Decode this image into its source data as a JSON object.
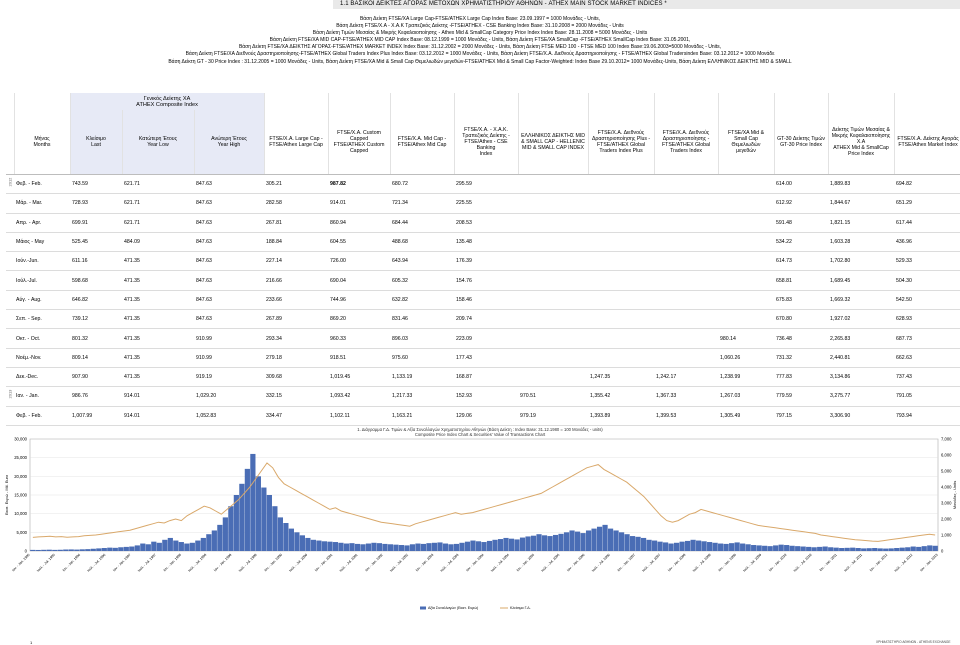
{
  "header": {
    "title": "1.1  ΒΑΣΙΚΟΙ ΔΕΙΚΤΕΣ ΑΓΟΡΑΣ ΜΕΤΟΧΩΝ  ΧΡΗΜΑΤΙΣΤΗΡΙΟΥ ΑΘΗΝΩΝ  - ATHEX MAIN STOCK MARKET INDICES *"
  },
  "notes": [
    "Βάση Δείκτη FTSE/XA Large Cap-FTSE/ATHEX Large Cap Index Base: 23.09.1997 = 1000  Μονάδες - Units,",
    "Βάση Δείκτη FTSE/X.A - X.A.K Τραπεζικός Δείκτης -FTSE/ATHEX - CSE Banking Index Base: 31.10.2008 = 2000 Μονάδες - Units",
    "Βάση Δείκτη Τιμών Μεσαίας & Μικρής Κεφαλαιοποίησης - Athex Mid & SmallCap Category Price Index Index Base: 28.11.2008 = 5000 Μονάδες - Units",
    "Βάση Δείκτη FTSE/XA MID CAP-FTSE/ATHEX MID CAP Index Base: 08.12.1999 = 1000  Μονάδες - Units, Βάση Δείκτη FTSE/XA SmallCap -FTSE/ATHEX SmallCap Index Base: 31.05.2001,",
    "Βάση Δείκτη FTSE/XA ΔΕΙΚΤΗΣ ΑΓΟΡΑΣ-FTSE/ATHEX MARKET INDEX Index Base: 31.12.2002 = 2000  Μονάδες - Units, Βάση Δείκτη FTSE MED 100 - FTSE MED 100 Index Base:19.06.2003=5000 Μονάδες - Units,",
    "Βάση Δείκτη FTSE/XA Διεθνούς Δραστηριοποίησης-FTSE/ATHEX Global Traders Index Plus Index Base: 03.12.2012 = 1000  Μονάδες - Units, Βάση Δείκτη FTSE/X.A. Διεθνούς Δραστηριοποίησης - FTSE/ATHEX Global Tradersindex Base: 03.12.2012 = 1000  Μονάδε",
    "Βάση Δείκτη GT - 30 Price Index : 31.12.2005 = 1000  Μονάδες - Units, Βάση Δείκτη FTSE/XA  Mid & Small Cap Θεμελιωδών μεγεθών-FTSE/ATHEX Mid & Small Cap Factor-Weighted: Index Base 29.10.2012= 1000 Μονάδες-Units, Βάση Δείκτη ΕΛΛΗΝΙΚΟΣ ΔΕΙΚΤΗΣ MID & SMALL"
  ],
  "table": {
    "group_header": "Γενικός Δείκτης ΧΑ\nATHEX Composite Index",
    "columns": [
      "Μήνας\nMonths",
      "Κλείσιμο\nLast",
      "Κατώτερη  Έτους\nYear  Low",
      "Ανώτερη  Έτους\nYear  High",
      "FTSE/X.A. Large Cap -\nFTSE/Athex Large Cap",
      "FTSE/X.A. Custom Capped\nFTSE/ATHEX Custom\nCapped",
      "FTSE/X.A. Mid Cap -\nFTSE/Athex Mid Cap",
      "FTSE/X.A. - X.A.K.\nΤραπεζικός Δείκτης -\nFTSE/Athex - CSE Banking\nIndex",
      "ΕΛΛΗΝΙΚΟΣ ΔΕΙΚΤΗΣ MID\n& SMALL CAP - HELLENIC\nMID & SMALL CAP INDEX",
      "FTSE/X.A. Διεθνούς\nΔραστηριοποίησης Plus -\nFTSE/ATHEX Global\nTraders Index Plus",
      "FTSE/X.A. Διεθνούς\nΔραστηριοποίησης -\nFTSE/ATHEX Global\nTraders Index",
      "FTSE/XA Mid &\nSmall Cap\nΘεμελιωδών\nμεγεθών",
      "GT-30 Δείκτης Τιμών\nGT-30 Price Index",
      "Δείκτης Τιμών Μεσαίας &\nΜικρής Κεφαλαιοποίησης\nΧ.Α\nATHEX Mid & SmallCap\nPrice Index",
      "FTSE/X.A. Δείκτης Αγοράς\nFTSE/Athex Market Index"
    ],
    "rows": [
      {
        "year": "2012",
        "month": "Φεβ. - Feb.",
        "v": [
          "743.59",
          "621.71",
          "847.63",
          "305.21",
          "987.82",
          "680.72",
          "295.59",
          "",
          "",
          "",
          "",
          "614.00",
          "1,889.83",
          "694.82"
        ]
      },
      {
        "year": "",
        "month": "Μάρ. - Mar.",
        "v": [
          "728.93",
          "621.71",
          "847.63",
          "282.58",
          "914.01",
          "721.34",
          "225.55",
          "",
          "",
          "",
          "",
          "612.92",
          "1,844.67",
          "651.29"
        ]
      },
      {
        "year": "",
        "month": "Απρ. - Apr.",
        "v": [
          "699.91",
          "621.71",
          "847.63",
          "267.81",
          "860.94",
          "684.44",
          "208.53",
          "",
          "",
          "",
          "",
          "591.48",
          "1,821.15",
          "617.44"
        ]
      },
      {
        "year": "",
        "month": "Μάιος - May",
        "v": [
          "525.45",
          "484.09",
          "847.63",
          "188.84",
          "604.55",
          "488.68",
          "135.48",
          "",
          "",
          "",
          "",
          "534.22",
          "1,603.28",
          "436.96"
        ]
      },
      {
        "year": "",
        "month": "Ιούν.-Jun.",
        "v": [
          "611.16",
          "471.35",
          "847.63",
          "227.14",
          "726.00",
          "643.94",
          "176.39",
          "",
          "",
          "",
          "",
          "614.73",
          "1,702.80",
          "529.33"
        ]
      },
      {
        "year": "",
        "month": "Ιούλ.-Jul.",
        "v": [
          "598.68",
          "471.35",
          "847.63",
          "216.66",
          "690.04",
          "605.32",
          "154.76",
          "",
          "",
          "",
          "",
          "658.81",
          "1,689.45",
          "504.30"
        ]
      },
      {
        "year": "",
        "month": "Αύγ. - Aug.",
        "v": [
          "646.82",
          "471.35",
          "847.63",
          "233.66",
          "744.96",
          "632.82",
          "158.46",
          "",
          "",
          "",
          "",
          "675.83",
          "1,669.32",
          "542.50"
        ]
      },
      {
        "year": "",
        "month": "Σεπ. - Sep.",
        "v": [
          "739.12",
          "471.35",
          "847.63",
          "267.89",
          "869.20",
          "831.46",
          "209.74",
          "",
          "",
          "",
          "",
          "670.80",
          "1,927.02",
          "628.93"
        ]
      },
      {
        "year": "",
        "month": "Οκτ. - Oct.",
        "v": [
          "801.32",
          "471.35",
          "910.99",
          "293.34",
          "960.33",
          "896.03",
          "223.09",
          "",
          "",
          "",
          "980.14",
          "736.48",
          "2,265.83",
          "687.73"
        ]
      },
      {
        "year": "",
        "month": "Νοέμ.-Nov.",
        "v": [
          "809.14",
          "471.35",
          "910.99",
          "279.18",
          "918.51",
          "975.60",
          "177.43",
          "",
          "",
          "",
          "1,060.26",
          "731.32",
          "2,440.81",
          "662.63"
        ]
      },
      {
        "year": "",
        "month": "Δεκ.-Dec.",
        "v": [
          "907.90",
          "471.35",
          "919.19",
          "309.68",
          "1,019.45",
          "1,133.19",
          "168.87",
          "",
          "1,247.35",
          "1,242.17",
          "1,238.99",
          "777.83",
          "3,134.86",
          "737.43"
        ]
      },
      {
        "year": "2013",
        "month": "Ιαν. - Jan.",
        "v": [
          "986.76",
          "914.01",
          "1,029.20",
          "332.15",
          "1,093.42",
          "1,217.33",
          "152.93",
          "970.51",
          "1,355.42",
          "1,367.33",
          "1,267.03",
          "779.59",
          "3,275.77",
          "791.05"
        ]
      },
      {
        "year": "",
        "month": "Φεβ. - Feb.",
        "v": [
          "1,007.99",
          "914.01",
          "1,052.83",
          "334.47",
          "1,102.11",
          "1,163.21",
          "129.06",
          "979.19",
          "1,393.89",
          "1,399.53",
          "1,305.49",
          "797.15",
          "3,306.90",
          "793.94"
        ]
      }
    ]
  },
  "chart_data": {
    "type": "bar",
    "title": "1.  Διάγραμμα Γ.Δ. Τιμών & Αξία Συναλλαγών Χρηματιστηρίου Αθηνών (Βάση Δείκτη : Index Base: 31.12.1980 = 100 Μονάδες - units)\nComposite Price Index Chart  & Securities' Value of Transactions Chart",
    "ylabel_left": "Εκατ. Ευρώ - Mil. Euro",
    "ylabel_right": "Μονάδες - Units",
    "yleft_ticks": [
      "0",
      "5,000",
      "10,000",
      "15,000",
      "20,000",
      "25,000",
      "30,000"
    ],
    "yright_ticks": [
      "0",
      "1,000",
      "2,000",
      "3,000",
      "4,000",
      "5,000",
      "6,000",
      "7,000"
    ],
    "yleft_range": [
      0,
      30000
    ],
    "yright_range": [
      0,
      7000
    ],
    "x_labels": [
      "Ιαν. - Jan. 1995",
      "Ιούλ. - Jul. 1995",
      "Ιαν. - Jan. 1996",
      "Ιούλ. - Jul. 1996",
      "Ιαν. - Jan. 1997",
      "Ιούλ. - Jul. 1997",
      "Ιαν. - Jan. 1998",
      "Ιούλ. - Jul. 1998",
      "Ιαν. - Jan. 1999",
      "Ιούλ. - Jul. 1999",
      "Ιαν. - Jan. 2000",
      "Ιούλ. - Jul. 2000",
      "Ιαν. - Jan. 2001",
      "Ιούλ. - Jul. 2001",
      "Ιαν. - Jan. 2002",
      "Ιούλ. - Jul. 2002",
      "Ιαν. - Jan. 2003",
      "Ιούλ. - Jul. 2003",
      "Ιαν. - Jan. 2004",
      "Ιούλ. - Jul. 2004",
      "Ιαν. - Jan. 2005",
      "Ιούλ. - Jul. 2005",
      "Ιαν. - Jan. 2006",
      "Ιούλ. - Jul. 2006",
      "Ιαν. - Jan. 2007",
      "Ιούλ. - Jul. 2007",
      "Ιαν. - Jan. 2008",
      "Ιούλ. - Jul. 2008",
      "Ιαν. - Jan. 2009",
      "Ιούλ. - Jul. 2009",
      "Ιαν. - Jan. 2010",
      "Ιούλ. - Jul. 2010",
      "Ιαν. - Jan. 2011",
      "Ιούλ. - Jul. 2011",
      "Ιαν. - Jan. 2012",
      "Ιούλ. - Jul. 2012",
      "Ιαν. - Jan. 2013"
    ],
    "legend": [
      "Αξία Συναλλαγών (Εκατ. Ευρώ)",
      "Κλείσιμο Γ.Δ."
    ],
    "legend_position": "bottom",
    "series": [
      {
        "name": "Αξία Συναλλαγών (Εκατ. Ευρώ)",
        "type": "bar",
        "axis": "left",
        "values": [
          300,
          280,
          320,
          350,
          300,
          330,
          400,
          420,
          380,
          450,
          500,
          600,
          700,
          800,
          900,
          850,
          1000,
          1100,
          1200,
          1500,
          2000,
          1800,
          2500,
          2200,
          3000,
          3500,
          2800,
          2400,
          2000,
          2200,
          2800,
          3500,
          4500,
          5500,
          7000,
          9000,
          12000,
          15000,
          18000,
          22000,
          26000,
          20000,
          17000,
          15000,
          12000,
          9000,
          7500,
          6000,
          5000,
          4200,
          3500,
          3000,
          2800,
          2600,
          2500,
          2400,
          2200,
          2000,
          2100,
          1900,
          1800,
          2000,
          2200,
          2100,
          1900,
          1800,
          1700,
          1600,
          1500,
          1800,
          2000,
          1900,
          2100,
          2200,
          2300,
          2000,
          1800,
          1900,
          2200,
          2500,
          2800,
          2600,
          2400,
          2700,
          3000,
          3200,
          3500,
          3300,
          3100,
          3600,
          3900,
          4100,
          4500,
          4200,
          4000,
          4300,
          4600,
          5000,
          5500,
          5200,
          4800,
          5500,
          6000,
          6500,
          7000,
          6000,
          5500,
          5000,
          4500,
          4000,
          3800,
          3500,
          3000,
          2800,
          2500,
          2300,
          2000,
          2200,
          2500,
          2700,
          3000,
          2800,
          2600,
          2400,
          2200,
          2000,
          1900,
          2100,
          2300,
          2000,
          1800,
          1600,
          1500,
          1400,
          1300,
          1500,
          1700,
          1600,
          1400,
          1300,
          1200,
          1100,
          1000,
          1100,
          1200,
          1000,
          900,
          800,
          850,
          900,
          800,
          700,
          750,
          800,
          700,
          650,
          700,
          800,
          900,
          1000,
          1200,
          1100,
          1300,
          1500,
          1400
        ]
      },
      {
        "name": "Κλείσιμο Γ.Δ.",
        "type": "line",
        "axis": "right",
        "values": [
          850,
          880,
          900,
          920,
          880,
          900,
          860,
          880,
          900,
          950,
          980,
          1000,
          1050,
          1100,
          1150,
          1200,
          1250,
          1300,
          1400,
          1500,
          1600,
          1700,
          1800,
          1750,
          1900,
          2000,
          1900,
          2200,
          2400,
          2600,
          2800,
          2700,
          2500,
          2300,
          2600,
          2900,
          3200,
          3600,
          4000,
          4500,
          5000,
          5500,
          5200,
          4600,
          4200,
          4000,
          3800,
          3600,
          3400,
          3200,
          3000,
          2800,
          2600,
          2700,
          2500,
          2400,
          2300,
          2200,
          2100,
          2000,
          1900,
          1800,
          1750,
          1700,
          1650,
          1600,
          1550,
          1700,
          1800,
          1900,
          2000,
          2100,
          2200,
          2300,
          2400,
          2300,
          2350,
          2400,
          2500,
          2600,
          2700,
          2800,
          2900,
          3000,
          3100,
          3200,
          3300,
          3400,
          3500,
          3600,
          3800,
          4000,
          4200,
          4400,
          4600,
          4800,
          5000,
          5200,
          5300,
          5400,
          5100,
          4900,
          4700,
          4500,
          4300,
          4000,
          3700,
          3400,
          3000,
          2600,
          2200,
          1900,
          1800,
          1900,
          2100,
          2300,
          2400,
          2600,
          2500,
          2400,
          2300,
          2200,
          2100,
          2000,
          1900,
          1800,
          1700,
          1600,
          1550,
          1500,
          1450,
          1400,
          1350,
          1300,
          1250,
          1200,
          1150,
          1100,
          1000,
          950,
          900,
          850,
          800,
          750,
          700,
          680,
          650,
          620,
          600,
          650,
          700,
          750,
          800,
          850,
          900,
          950,
          1000,
          1050,
          1000
        ]
      }
    ]
  },
  "footer": {
    "left": "1",
    "right": "ΧΡΗΜΑΤΙΣΤΗΡΙΟ ΑΘΗΝΩΝ - ATHENS EXCHANGE"
  },
  "colors": {
    "bar": "#4a6db5",
    "line": "#d9a86a",
    "header_highlight": "#e7eaf6",
    "topbar": "#e9e9e9"
  }
}
